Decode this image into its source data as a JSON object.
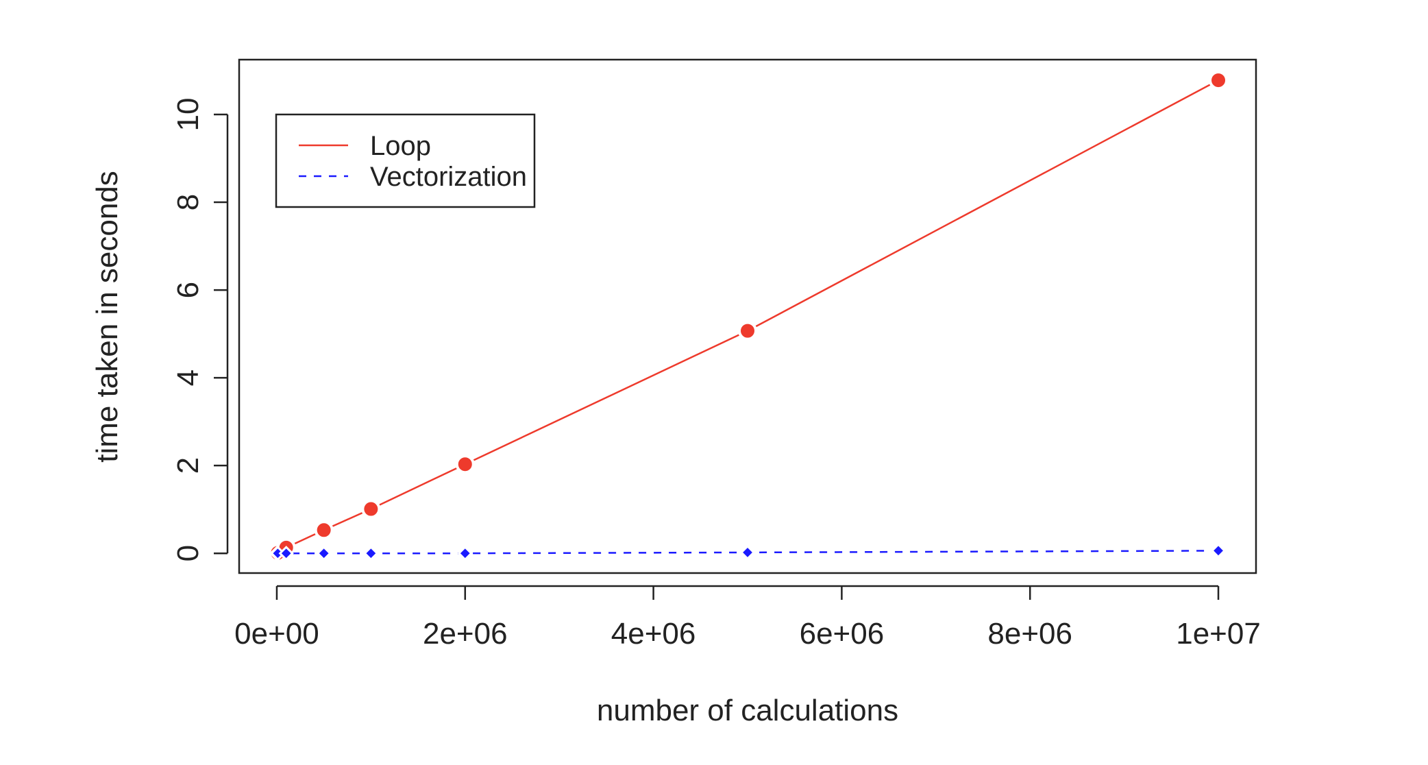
{
  "chart_data": {
    "type": "line",
    "title": "",
    "xlabel": "number of calculations",
    "ylabel": "time taken in seconds",
    "xlim": [
      -400000,
      10400000
    ],
    "ylim": [
      -0.45,
      11.25
    ],
    "xticks": [
      0,
      2000000,
      4000000,
      6000000,
      8000000,
      10000000
    ],
    "xtick_labels": [
      "0e+00",
      "2e+06",
      "4e+06",
      "6e+06",
      "8e+06",
      "1e+07"
    ],
    "yticks": [
      0,
      2,
      4,
      6,
      8,
      10
    ],
    "ytick_labels": [
      "0",
      "2",
      "4",
      "6",
      "8",
      "10"
    ],
    "grid": false,
    "legend_position": "top-left",
    "x": [
      1000,
      10000,
      100000,
      500000,
      1000000,
      2000000,
      5000000,
      10000000
    ],
    "series": [
      {
        "name": "Loop",
        "color": "#ee3a2c",
        "line_style": "solid",
        "marker": "circle",
        "values": [
          0.0,
          0.01,
          0.13,
          0.53,
          1.01,
          2.03,
          5.07,
          10.78
        ]
      },
      {
        "name": "Vectorization",
        "color": "#1a1aff",
        "line_style": "dashed",
        "marker": "diamond",
        "values": [
          0.0,
          0.0,
          0.0,
          0.0,
          0.0,
          0.0,
          0.02,
          0.06
        ]
      }
    ]
  }
}
